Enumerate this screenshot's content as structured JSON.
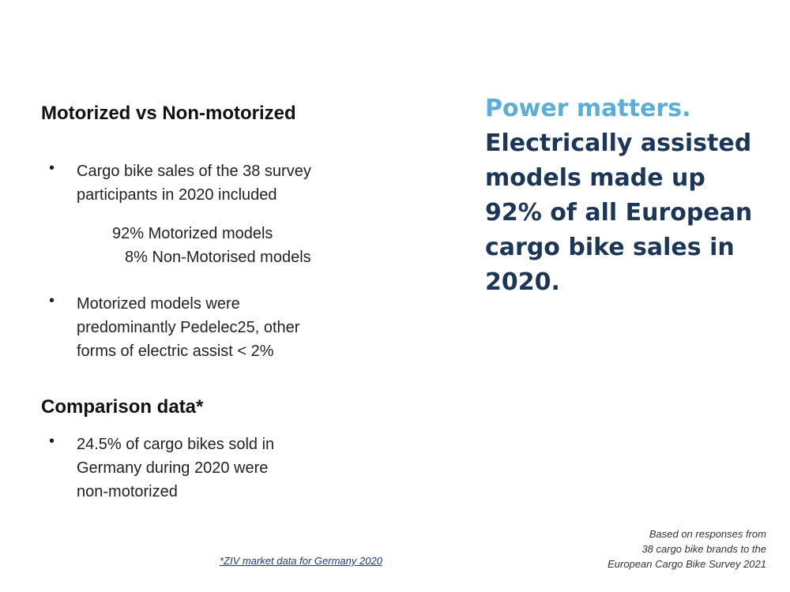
{
  "left": {
    "heading": "Motorized vs Non-motorized",
    "bullets": [
      {
        "lines": [
          "Cargo bike sales of the 38 survey",
          "participants in 2020 included"
        ]
      },
      {
        "lines": [
          "Motorized models were",
          "predominantly Pedelec25, other",
          "forms of electric assist < 2%"
        ]
      }
    ],
    "breakdown": [
      "92% Motorized models",
      "8% Non-Motorised models"
    ],
    "comparison_heading": "Comparison data*",
    "comparison_bullets": [
      {
        "lines": [
          "24.5% of cargo bikes sold in",
          "Germany during 2020 were",
          "non-motorized"
        ]
      }
    ],
    "footnote": "*ZIV market data for Germany 2020"
  },
  "right": {
    "accent": "Power matters.",
    "headline": [
      "Electrically assisted",
      "models made up",
      "92% of all European",
      "cargo bike sales in",
      "2020."
    ],
    "source": [
      "Based on responses from",
      "38 cargo bike brands to the",
      "European Cargo Bike Survey 2021"
    ]
  }
}
